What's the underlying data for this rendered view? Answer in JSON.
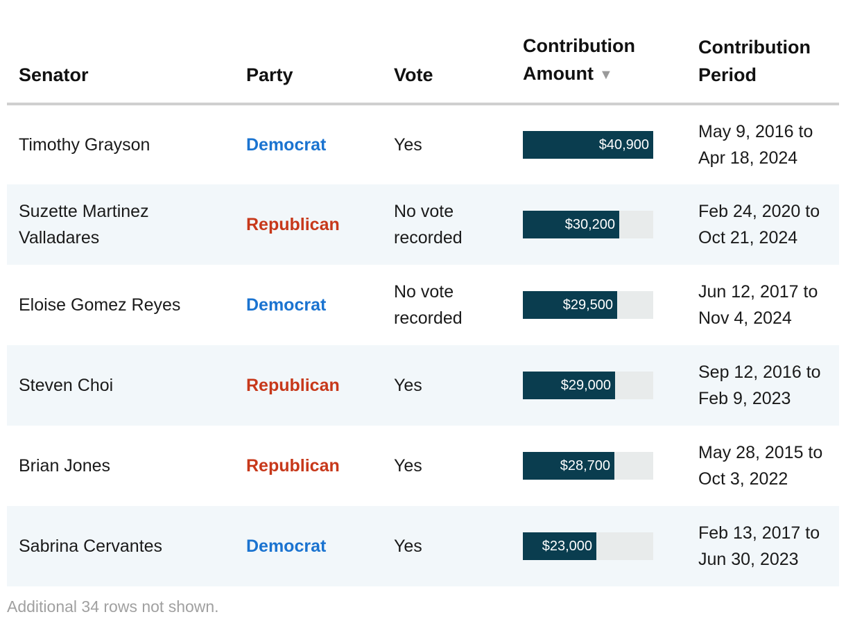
{
  "table": {
    "headers": {
      "senator": "Senator",
      "party": "Party",
      "vote": "Vote",
      "amount_line1": "Contribution",
      "amount_line2": "Amount",
      "amount_sort_indicator": "▼",
      "period_line1": "Contribution",
      "period_line2": "Period"
    },
    "max_amount": 40900,
    "rows": [
      {
        "senator_line1": "Timothy Grayson",
        "senator_line2": "",
        "party": "Democrat",
        "vote_line1": "Yes",
        "vote_line2": "",
        "amount": 40900,
        "amount_label": "$40,900",
        "period_line1": "May 9, 2016 to",
        "period_line2": "Apr 18, 2024"
      },
      {
        "senator_line1": "Suzette Martinez",
        "senator_line2": "Valladares",
        "party": "Republican",
        "vote_line1": "No vote",
        "vote_line2": "recorded",
        "amount": 30200,
        "amount_label": "$30,200",
        "period_line1": "Feb 24, 2020 to",
        "period_line2": "Oct 21, 2024"
      },
      {
        "senator_line1": "Eloise Gomez Reyes",
        "senator_line2": "",
        "party": "Democrat",
        "vote_line1": "No vote",
        "vote_line2": "recorded",
        "amount": 29500,
        "amount_label": "$29,500",
        "period_line1": "Jun 12, 2017 to",
        "period_line2": "Nov 4, 2024"
      },
      {
        "senator_line1": "Steven Choi",
        "senator_line2": "",
        "party": "Republican",
        "vote_line1": "Yes",
        "vote_line2": "",
        "amount": 29000,
        "amount_label": "$29,000",
        "period_line1": "Sep 12, 2016 to",
        "period_line2": "Feb 9, 2023"
      },
      {
        "senator_line1": "Brian Jones",
        "senator_line2": "",
        "party": "Republican",
        "vote_line1": "Yes",
        "vote_line2": "",
        "amount": 28700,
        "amount_label": "$28,700",
        "period_line1": "May 28, 2015 to",
        "period_line2": "Oct 3, 2022"
      },
      {
        "senator_line1": "Sabrina Cervantes",
        "senator_line2": "",
        "party": "Democrat",
        "vote_line1": "Yes",
        "vote_line2": "",
        "amount": 23000,
        "amount_label": "$23,000",
        "period_line1": "Feb 13, 2017 to",
        "period_line2": "Jun 30, 2023"
      }
    ]
  },
  "footnote": "Additional 34 rows not shown.",
  "colors": {
    "democrat": "#1a73d0",
    "republican": "#c7381a",
    "bar_fill": "#0a3d4f",
    "bar_track": "#e8ebeb",
    "row_stripe": "#f2f7fa"
  }
}
